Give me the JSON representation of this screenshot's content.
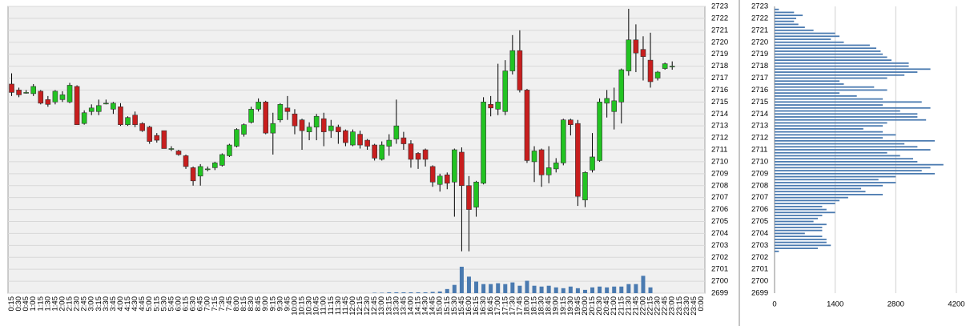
{
  "chart_data": [
    {
      "type": "candlestick",
      "categories": [
        "0:15",
        "0:30",
        "0:45",
        "1:00",
        "1:15",
        "1:30",
        "1:45",
        "2:00",
        "2:15",
        "2:30",
        "2:45",
        "3:00",
        "3:15",
        "3:30",
        "3:45",
        "4:00",
        "4:15",
        "4:30",
        "4:45",
        "5:00",
        "5:15",
        "5:30",
        "5:45",
        "6:00",
        "6:15",
        "6:30",
        "6:45",
        "7:00",
        "7:15",
        "7:30",
        "7:45",
        "8:00",
        "8:15",
        "8:30",
        "8:45",
        "9:00",
        "9:15",
        "9:30",
        "9:45",
        "10:00",
        "10:15",
        "10:30",
        "10:45",
        "11:00",
        "11:15",
        "11:30",
        "11:45",
        "12:00",
        "12:15",
        "12:30",
        "12:45",
        "13:00",
        "13:15",
        "13:30",
        "13:45",
        "14:00",
        "14:15",
        "14:30",
        "14:45",
        "15:00",
        "15:15",
        "15:30",
        "15:45",
        "16:00",
        "16:15",
        "16:30",
        "16:45",
        "17:00",
        "17:15",
        "17:30",
        "17:45",
        "18:00",
        "18:15",
        "18:30",
        "18:45",
        "19:00",
        "19:15",
        "19:30",
        "19:45",
        "20:00",
        "20:15",
        "20:30",
        "20:45",
        "21:00",
        "21:15",
        "21:30",
        "21:45",
        "22:00",
        "22:15",
        "22:30",
        "22:45",
        "23:00",
        "23:15",
        "23:30",
        "23:45",
        "0:00"
      ],
      "open": [
        2716.5,
        2716,
        2715.8,
        2715.7,
        2715.9,
        2715.2,
        2715,
        2715.2,
        2715,
        2716.3,
        2713.2,
        2714.2,
        2714.2,
        2714.9,
        2714.4,
        2714.6,
        2713.1,
        2713.9,
        2713.2,
        2712.9,
        2712.2,
        2712.6,
        2711.1,
        2710.9,
        2710.5,
        2709.5,
        2708.8,
        2709.4,
        2709.5,
        2709.7,
        2710.5,
        2711.3,
        2712.3,
        2713.3,
        2714.4,
        2715,
        2712.4,
        2713.5,
        2714.5,
        2714,
        2713.5,
        2712.5,
        2712.9,
        2713.6,
        2712.6,
        2712.9,
        2712.6,
        2711.4,
        2712.3,
        2711.8,
        2711.4,
        2710.2,
        2711.3,
        2711.9,
        2712,
        2711.5,
        2710.7,
        2711,
        2709.6,
        2708.1,
        2708.9,
        2708.3,
        2710.8,
        2708,
        2706.2,
        2708.2,
        2714.8,
        2714.4,
        2714.2,
        2717.6,
        2719.3,
        2716,
        2710,
        2711,
        2708.9,
        2709.4,
        2709.9,
        2713.5,
        2713.2,
        2706.8,
        2709.3,
        2710.1,
        2714.9,
        2714.2,
        2715,
        2717.6,
        2720.2,
        2719.4,
        2718.5,
        2717,
        2717.8,
        2718,
        null,
        null,
        null,
        null
      ],
      "high": [
        2717.4,
        2716.2,
        2716,
        2716.5,
        2716,
        2715.5,
        2716,
        2715.9,
        2716.6,
        2716.4,
        2714.3,
        2714.8,
        2715.2,
        2715.2,
        2715,
        2714.9,
        2713.8,
        2714.2,
        2713.3,
        2713,
        2712.4,
        2712.6,
        2711.3,
        2711,
        2710.6,
        2709.6,
        2709.8,
        2709.6,
        2710,
        2710.7,
        2711.5,
        2712.8,
        2713.2,
        2714.6,
        2715.3,
        2715.1,
        2714.1,
        2714.9,
        2715.5,
        2714.4,
        2713.6,
        2713.3,
        2714,
        2714.1,
        2713.5,
        2713.1,
        2712.7,
        2712.7,
        2712.6,
        2711.9,
        2711.5,
        2711.7,
        2712.3,
        2715.2,
        2712.5,
        2711.8,
        2710.8,
        2711.1,
        2709.7,
        2709,
        2709.1,
        2711.1,
        2711.2,
        2708.8,
        2708.4,
        2715.4,
        2715.5,
        2718.2,
        2718.5,
        2720.6,
        2721,
        2716.1,
        2711.3,
        2711.1,
        2711.3,
        2710.3,
        2713.6,
        2713.6,
        2713.5,
        2709.2,
        2712.4,
        2715.3,
        2716,
        2716.2,
        2717.8,
        2722.8,
        2721.5,
        2720.5,
        2720.8,
        2717.6,
        2718.3,
        2718.4,
        null,
        null,
        null,
        null
      ],
      "low": [
        2715.5,
        2715.4,
        2715.7,
        2715.5,
        2714.8,
        2714.6,
        2714.8,
        2715,
        2714.9,
        2713.1,
        2713.1,
        2713.9,
        2713.9,
        2714.8,
        2714,
        2713,
        2713,
        2712.9,
        2712.5,
        2711.5,
        2711.6,
        2711.1,
        2710.9,
        2710.5,
        2709.4,
        2708,
        2708,
        2709.2,
        2709.3,
        2709.6,
        2710.4,
        2711.2,
        2712.1,
        2713.2,
        2714.2,
        2712.3,
        2710.6,
        2713.3,
        2713.5,
        2712.3,
        2711,
        2711.8,
        2711.8,
        2711.3,
        2712,
        2711.5,
        2711.3,
        2711.3,
        2711.1,
        2711,
        2710.1,
        2710.1,
        2710.5,
        2711.5,
        2711,
        2709.5,
        2709.4,
        2709.6,
        2707.9,
        2707.5,
        2707.7,
        2705.4,
        2702.5,
        2702.5,
        2705.4,
        2708.1,
        2713.8,
        2713.9,
        2713.9,
        2717.3,
        2715.8,
        2709.9,
        2708.3,
        2707.9,
        2708.2,
        2709.1,
        2709.7,
        2712.2,
        2706.3,
        2706.2,
        2709.1,
        2710,
        2713.7,
        2712.7,
        2713.2,
        2717.2,
        2717.5,
        2716.8,
        2716.2,
        2716.8,
        2717.7,
        2717.7,
        null,
        null,
        null,
        null
      ],
      "close": [
        2715.8,
        2715.6,
        2715.8,
        2716.3,
        2714.9,
        2714.8,
        2715.9,
        2715.6,
        2716.4,
        2713.1,
        2714.1,
        2714.5,
        2714.7,
        2714.9,
        2714.9,
        2713.1,
        2713.7,
        2713.1,
        2712.6,
        2711.7,
        2711.8,
        2711.1,
        2711.1,
        2710.6,
        2709.6,
        2708.4,
        2709.6,
        2709.4,
        2709.9,
        2710.6,
        2711.4,
        2712.7,
        2713.1,
        2714.4,
        2715,
        2712.4,
        2713.2,
        2714.8,
        2714.2,
        2713,
        2712.6,
        2712.9,
        2713.8,
        2712.5,
        2713,
        2712.5,
        2711.6,
        2712.5,
        2711.4,
        2711.3,
        2710.3,
        2711.4,
        2711.8,
        2713,
        2711.5,
        2710.2,
        2710.2,
        2710.2,
        2708.3,
        2708.8,
        2708.2,
        2711,
        2708,
        2706,
        2708.3,
        2715,
        2714.5,
        2715,
        2717.6,
        2719.3,
        2716,
        2710.1,
        2710.9,
        2708.9,
        2709.5,
        2709.9,
        2713.5,
        2713.1,
        2707.1,
        2709.1,
        2710.4,
        2715,
        2715.3,
        2715.1,
        2717.7,
        2720.2,
        2719.1,
        2718.8,
        2716.7,
        2717.5,
        2718.2,
        2718,
        null,
        null,
        null,
        null
      ],
      "volume": [
        0,
        0,
        0,
        0,
        0,
        0,
        0,
        0,
        0,
        0,
        0,
        0,
        0,
        0,
        0,
        0,
        0,
        0,
        0,
        0,
        0,
        0,
        0,
        0,
        0,
        0,
        0,
        0,
        0,
        0,
        0,
        0,
        0,
        0,
        0,
        0,
        0,
        0,
        0,
        0,
        0,
        0,
        0,
        0,
        0,
        0,
        0,
        0,
        0,
        0,
        0.5,
        0.5,
        1,
        1,
        1,
        1,
        1,
        1,
        1.5,
        2,
        5,
        10,
        32,
        20,
        14,
        11,
        11,
        12,
        11,
        13,
        9,
        15,
        9,
        8,
        9,
        7,
        6,
        8,
        6,
        4,
        7,
        8,
        7,
        8,
        8,
        11,
        11,
        21,
        7,
        0,
        0,
        0,
        0,
        0,
        0,
        0
      ],
      "up_color": "#22c322",
      "down_color": "#c81e1e",
      "volume_color": "#4a7ab0",
      "ylim": [
        2699,
        2723
      ],
      "yticks": [
        2699,
        2700,
        2701,
        2702,
        2703,
        2704,
        2705,
        2706,
        2707,
        2708,
        2709,
        2710,
        2711,
        2712,
        2713,
        2714,
        2715,
        2716,
        2717,
        2718,
        2719,
        2720,
        2721,
        2722,
        2723
      ],
      "grid": true
    },
    {
      "type": "barh",
      "prices": [
        2722.75,
        2722.5,
        2722.25,
        2722,
        2721.75,
        2721.5,
        2721.25,
        2721,
        2720.75,
        2720.5,
        2720.25,
        2720,
        2719.75,
        2719.5,
        2719.25,
        2719,
        2718.75,
        2718.5,
        2718.25,
        2718,
        2717.75,
        2717.5,
        2717.25,
        2717,
        2716.75,
        2716.5,
        2716.25,
        2716,
        2715.75,
        2715.5,
        2715.25,
        2715,
        2714.75,
        2714.5,
        2714.25,
        2714,
        2713.75,
        2713.5,
        2713.25,
        2713,
        2712.75,
        2712.5,
        2712.25,
        2712,
        2711.75,
        2711.5,
        2711.25,
        2711,
        2710.75,
        2710.5,
        2710.25,
        2710,
        2709.75,
        2709.5,
        2709.25,
        2709,
        2708.75,
        2708.5,
        2708.25,
        2708,
        2707.75,
        2707.5,
        2707.25,
        2707,
        2706.75,
        2706.5,
        2706.25,
        2706,
        2705.75,
        2705.5,
        2705.25,
        2705,
        2704.75,
        2704.5,
        2704.25,
        2704,
        2703.75,
        2703.5,
        2703.25,
        2703,
        2702.75,
        2702.5
      ],
      "values": [
        100,
        450,
        650,
        500,
        450,
        550,
        700,
        900,
        1400,
        1500,
        1300,
        1600,
        2200,
        2350,
        2450,
        2500,
        2600,
        2700,
        3100,
        3100,
        3600,
        3300,
        3000,
        2600,
        1500,
        1600,
        2300,
        2600,
        1500,
        1900,
        2500,
        3400,
        2500,
        3600,
        2900,
        3300,
        3300,
        3500,
        2600,
        2500,
        2050,
        2500,
        2800,
        2500,
        3700,
        3000,
        3300,
        3600,
        2600,
        2900,
        3200,
        3300,
        3900,
        3600,
        3400,
        3700,
        2800,
        2400,
        2800,
        2500,
        2000,
        2100,
        2500,
        1700,
        1500,
        1400,
        1100,
        1200,
        1400,
        1100,
        1000,
        900,
        1200,
        1100,
        1100,
        700,
        1100,
        1200,
        1200,
        1300,
        1000,
        100
      ],
      "color": "#4a7ab0",
      "xlim": [
        0,
        4200
      ],
      "xticks": [
        0,
        1400,
        2800,
        4200
      ],
      "ylim": [
        2699,
        2723
      ],
      "yticks": [
        2699,
        2700,
        2701,
        2702,
        2703,
        2704,
        2705,
        2706,
        2707,
        2708,
        2709,
        2710,
        2711,
        2712,
        2713,
        2714,
        2715,
        2716,
        2717,
        2718,
        2719,
        2720,
        2721,
        2722,
        2723
      ],
      "grid": true
    }
  ]
}
